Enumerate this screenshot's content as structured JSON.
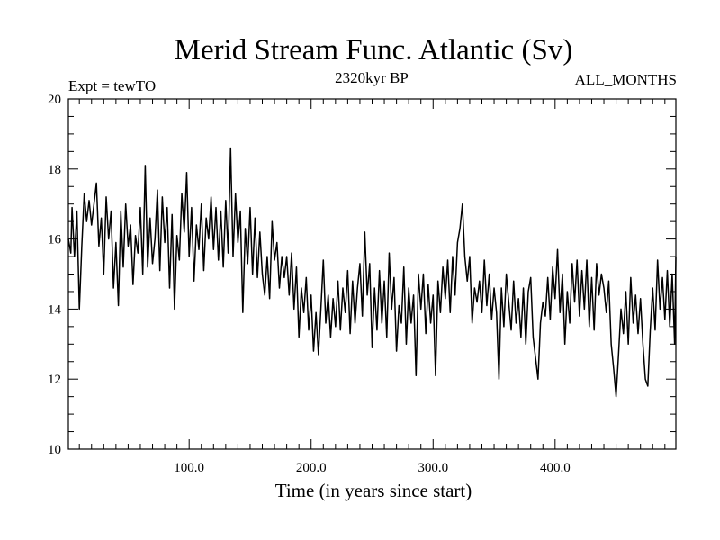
{
  "chart_data": {
    "type": "line",
    "title": "Merid Stream Func. Atlantic (Sv)",
    "subtitle_left": "Expt = tewTO",
    "subtitle_center": "2320kyr BP",
    "subtitle_right": "ALL_MONTHS",
    "xlabel": "Time (in years since start)",
    "ylabel": "",
    "xlim": [
      1,
      499
    ],
    "ylim": [
      10,
      20
    ],
    "x_ticks": [
      100,
      200,
      300,
      400
    ],
    "x_tick_labels": [
      "100.0",
      "200.0",
      "300.0",
      "400.0"
    ],
    "y_ticks": [
      10,
      12,
      14,
      16,
      18,
      20
    ],
    "y_tick_labels": [
      "10",
      "12",
      "14",
      "16",
      "18",
      "20"
    ],
    "grid": false,
    "series": [
      {
        "name": "Merid Stream Func. Atlantic",
        "anchors": [
          [
            1,
            16.0
          ],
          [
            3,
            15.6
          ],
          [
            4,
            16.9
          ],
          [
            6,
            15.5
          ],
          [
            8,
            16.8
          ],
          [
            10,
            14.0
          ],
          [
            12,
            15.8
          ],
          [
            14,
            17.3
          ],
          [
            16,
            16.5
          ],
          [
            18,
            17.1
          ],
          [
            20,
            16.4
          ],
          [
            22,
            17.0
          ],
          [
            24,
            17.6
          ],
          [
            26,
            15.8
          ],
          [
            28,
            16.6
          ],
          [
            30,
            15.0
          ],
          [
            32,
            17.2
          ],
          [
            34,
            16.0
          ],
          [
            36,
            16.8
          ],
          [
            38,
            14.6
          ],
          [
            40,
            15.9
          ],
          [
            42,
            14.1
          ],
          [
            44,
            16.8
          ],
          [
            46,
            15.2
          ],
          [
            48,
            17.0
          ],
          [
            50,
            15.8
          ],
          [
            52,
            16.4
          ],
          [
            54,
            14.7
          ],
          [
            56,
            16.1
          ],
          [
            58,
            15.6
          ],
          [
            60,
            16.9
          ],
          [
            62,
            15.0
          ],
          [
            64,
            18.1
          ],
          [
            66,
            15.2
          ],
          [
            68,
            16.6
          ],
          [
            70,
            15.3
          ],
          [
            72,
            16.0
          ],
          [
            74,
            17.4
          ],
          [
            76,
            15.1
          ],
          [
            78,
            17.2
          ],
          [
            80,
            15.9
          ],
          [
            82,
            16.9
          ],
          [
            84,
            14.6
          ],
          [
            86,
            16.7
          ],
          [
            88,
            14.0
          ],
          [
            90,
            16.1
          ],
          [
            92,
            15.4
          ],
          [
            94,
            17.3
          ],
          [
            96,
            16.2
          ],
          [
            98,
            17.9
          ],
          [
            100,
            15.5
          ],
          [
            102,
            16.9
          ],
          [
            104,
            14.8
          ],
          [
            106,
            16.4
          ],
          [
            108,
            15.7
          ],
          [
            110,
            17.0
          ],
          [
            112,
            15.1
          ],
          [
            114,
            16.6
          ],
          [
            116,
            16.0
          ],
          [
            118,
            17.2
          ],
          [
            120,
            15.7
          ],
          [
            122,
            16.9
          ],
          [
            124,
            15.4
          ],
          [
            126,
            16.8
          ],
          [
            128,
            15.2
          ],
          [
            130,
            17.1
          ],
          [
            132,
            15.6
          ],
          [
            134,
            18.6
          ],
          [
            136,
            15.5
          ],
          [
            138,
            17.3
          ],
          [
            140,
            15.9
          ],
          [
            142,
            16.8
          ],
          [
            144,
            13.9
          ],
          [
            146,
            16.3
          ],
          [
            148,
            15.3
          ],
          [
            150,
            16.9
          ],
          [
            152,
            15.0
          ],
          [
            154,
            16.6
          ],
          [
            156,
            14.9
          ],
          [
            158,
            16.2
          ],
          [
            160,
            15.0
          ],
          [
            162,
            14.4
          ],
          [
            164,
            15.5
          ],
          [
            166,
            14.3
          ],
          [
            168,
            16.5
          ],
          [
            170,
            15.4
          ],
          [
            172,
            15.9
          ],
          [
            174,
            14.6
          ],
          [
            176,
            15.5
          ],
          [
            178,
            14.9
          ],
          [
            180,
            15.5
          ],
          [
            182,
            14.4
          ],
          [
            184,
            15.6
          ],
          [
            186,
            14.0
          ],
          [
            188,
            15.2
          ],
          [
            190,
            13.2
          ],
          [
            192,
            14.6
          ],
          [
            194,
            13.9
          ],
          [
            196,
            14.9
          ],
          [
            198,
            13.4
          ],
          [
            200,
            14.4
          ],
          [
            202,
            12.8
          ],
          [
            204,
            13.9
          ],
          [
            206,
            12.7
          ],
          [
            208,
            14.0
          ],
          [
            210,
            15.4
          ],
          [
            212,
            13.6
          ],
          [
            214,
            14.4
          ],
          [
            216,
            13.2
          ],
          [
            218,
            14.3
          ],
          [
            220,
            13.5
          ],
          [
            222,
            14.8
          ],
          [
            224,
            13.4
          ],
          [
            226,
            14.6
          ],
          [
            228,
            13.9
          ],
          [
            230,
            15.1
          ],
          [
            232,
            13.3
          ],
          [
            234,
            14.8
          ],
          [
            236,
            13.6
          ],
          [
            238,
            14.6
          ],
          [
            240,
            15.3
          ],
          [
            242,
            13.8
          ],
          [
            244,
            16.2
          ],
          [
            246,
            14.4
          ],
          [
            248,
            15.3
          ],
          [
            250,
            12.9
          ],
          [
            252,
            14.6
          ],
          [
            254,
            13.4
          ],
          [
            256,
            15.1
          ],
          [
            258,
            13.6
          ],
          [
            260,
            14.8
          ],
          [
            262,
            13.2
          ],
          [
            264,
            15.6
          ],
          [
            266,
            14.0
          ],
          [
            268,
            14.9
          ],
          [
            270,
            12.8
          ],
          [
            272,
            14.1
          ],
          [
            274,
            13.6
          ],
          [
            276,
            15.2
          ],
          [
            278,
            13.0
          ],
          [
            280,
            14.6
          ],
          [
            282,
            13.6
          ],
          [
            284,
            14.4
          ],
          [
            286,
            12.1
          ],
          [
            288,
            15.0
          ],
          [
            290,
            14.0
          ],
          [
            292,
            15.0
          ],
          [
            294,
            13.3
          ],
          [
            296,
            14.7
          ],
          [
            298,
            13.6
          ],
          [
            300,
            14.4
          ],
          [
            302,
            12.1
          ],
          [
            304,
            14.8
          ],
          [
            306,
            13.9
          ],
          [
            308,
            15.2
          ],
          [
            310,
            14.3
          ],
          [
            312,
            15.4
          ],
          [
            314,
            13.9
          ],
          [
            316,
            15.5
          ],
          [
            318,
            14.4
          ],
          [
            320,
            15.9
          ],
          [
            322,
            16.3
          ],
          [
            324,
            17.0
          ],
          [
            326,
            15.5
          ],
          [
            328,
            14.8
          ],
          [
            330,
            15.5
          ],
          [
            332,
            13.6
          ],
          [
            334,
            14.6
          ],
          [
            336,
            14.2
          ],
          [
            338,
            14.8
          ],
          [
            340,
            13.9
          ],
          [
            342,
            15.4
          ],
          [
            344,
            14.1
          ],
          [
            346,
            15.0
          ],
          [
            348,
            13.7
          ],
          [
            350,
            14.6
          ],
          [
            352,
            13.9
          ],
          [
            354,
            12.0
          ],
          [
            356,
            14.6
          ],
          [
            358,
            13.5
          ],
          [
            360,
            15.0
          ],
          [
            362,
            14.2
          ],
          [
            364,
            13.4
          ],
          [
            366,
            14.8
          ],
          [
            368,
            13.6
          ],
          [
            370,
            14.3
          ],
          [
            372,
            13.2
          ],
          [
            374,
            14.6
          ],
          [
            376,
            13.0
          ],
          [
            378,
            14.5
          ],
          [
            380,
            14.9
          ],
          [
            382,
            13.2
          ],
          [
            384,
            12.6
          ],
          [
            386,
            12.0
          ],
          [
            388,
            13.6
          ],
          [
            390,
            14.2
          ],
          [
            392,
            13.8
          ],
          [
            394,
            14.9
          ],
          [
            396,
            13.7
          ],
          [
            398,
            15.2
          ],
          [
            400,
            14.3
          ],
          [
            402,
            15.7
          ],
          [
            404,
            13.9
          ],
          [
            406,
            15.0
          ],
          [
            408,
            13.0
          ],
          [
            410,
            14.5
          ],
          [
            412,
            13.6
          ],
          [
            414,
            15.3
          ],
          [
            416,
            14.2
          ],
          [
            418,
            15.4
          ],
          [
            420,
            13.8
          ],
          [
            422,
            15.1
          ],
          [
            424,
            14.0
          ],
          [
            426,
            15.4
          ],
          [
            428,
            13.5
          ],
          [
            430,
            14.9
          ],
          [
            432,
            13.4
          ],
          [
            434,
            15.3
          ],
          [
            436,
            14.4
          ],
          [
            438,
            15.0
          ],
          [
            440,
            14.6
          ],
          [
            442,
            13.9
          ],
          [
            444,
            14.8
          ],
          [
            446,
            13.0
          ],
          [
            448,
            12.3
          ],
          [
            450,
            11.5
          ],
          [
            452,
            12.7
          ],
          [
            454,
            14.0
          ],
          [
            456,
            13.3
          ],
          [
            458,
            14.5
          ],
          [
            460,
            13.0
          ],
          [
            462,
            14.9
          ],
          [
            464,
            13.6
          ],
          [
            466,
            14.4
          ],
          [
            468,
            13.3
          ],
          [
            470,
            14.3
          ],
          [
            472,
            13.0
          ],
          [
            474,
            12.0
          ],
          [
            476,
            11.8
          ],
          [
            478,
            13.4
          ],
          [
            480,
            14.6
          ],
          [
            482,
            13.4
          ],
          [
            484,
            15.4
          ],
          [
            486,
            14.0
          ],
          [
            488,
            14.9
          ],
          [
            490,
            13.7
          ],
          [
            492,
            15.1
          ],
          [
            494,
            13.5
          ],
          [
            496,
            15.0
          ],
          [
            498,
            13.0
          ],
          [
            499,
            15.5
          ]
        ]
      }
    ]
  }
}
